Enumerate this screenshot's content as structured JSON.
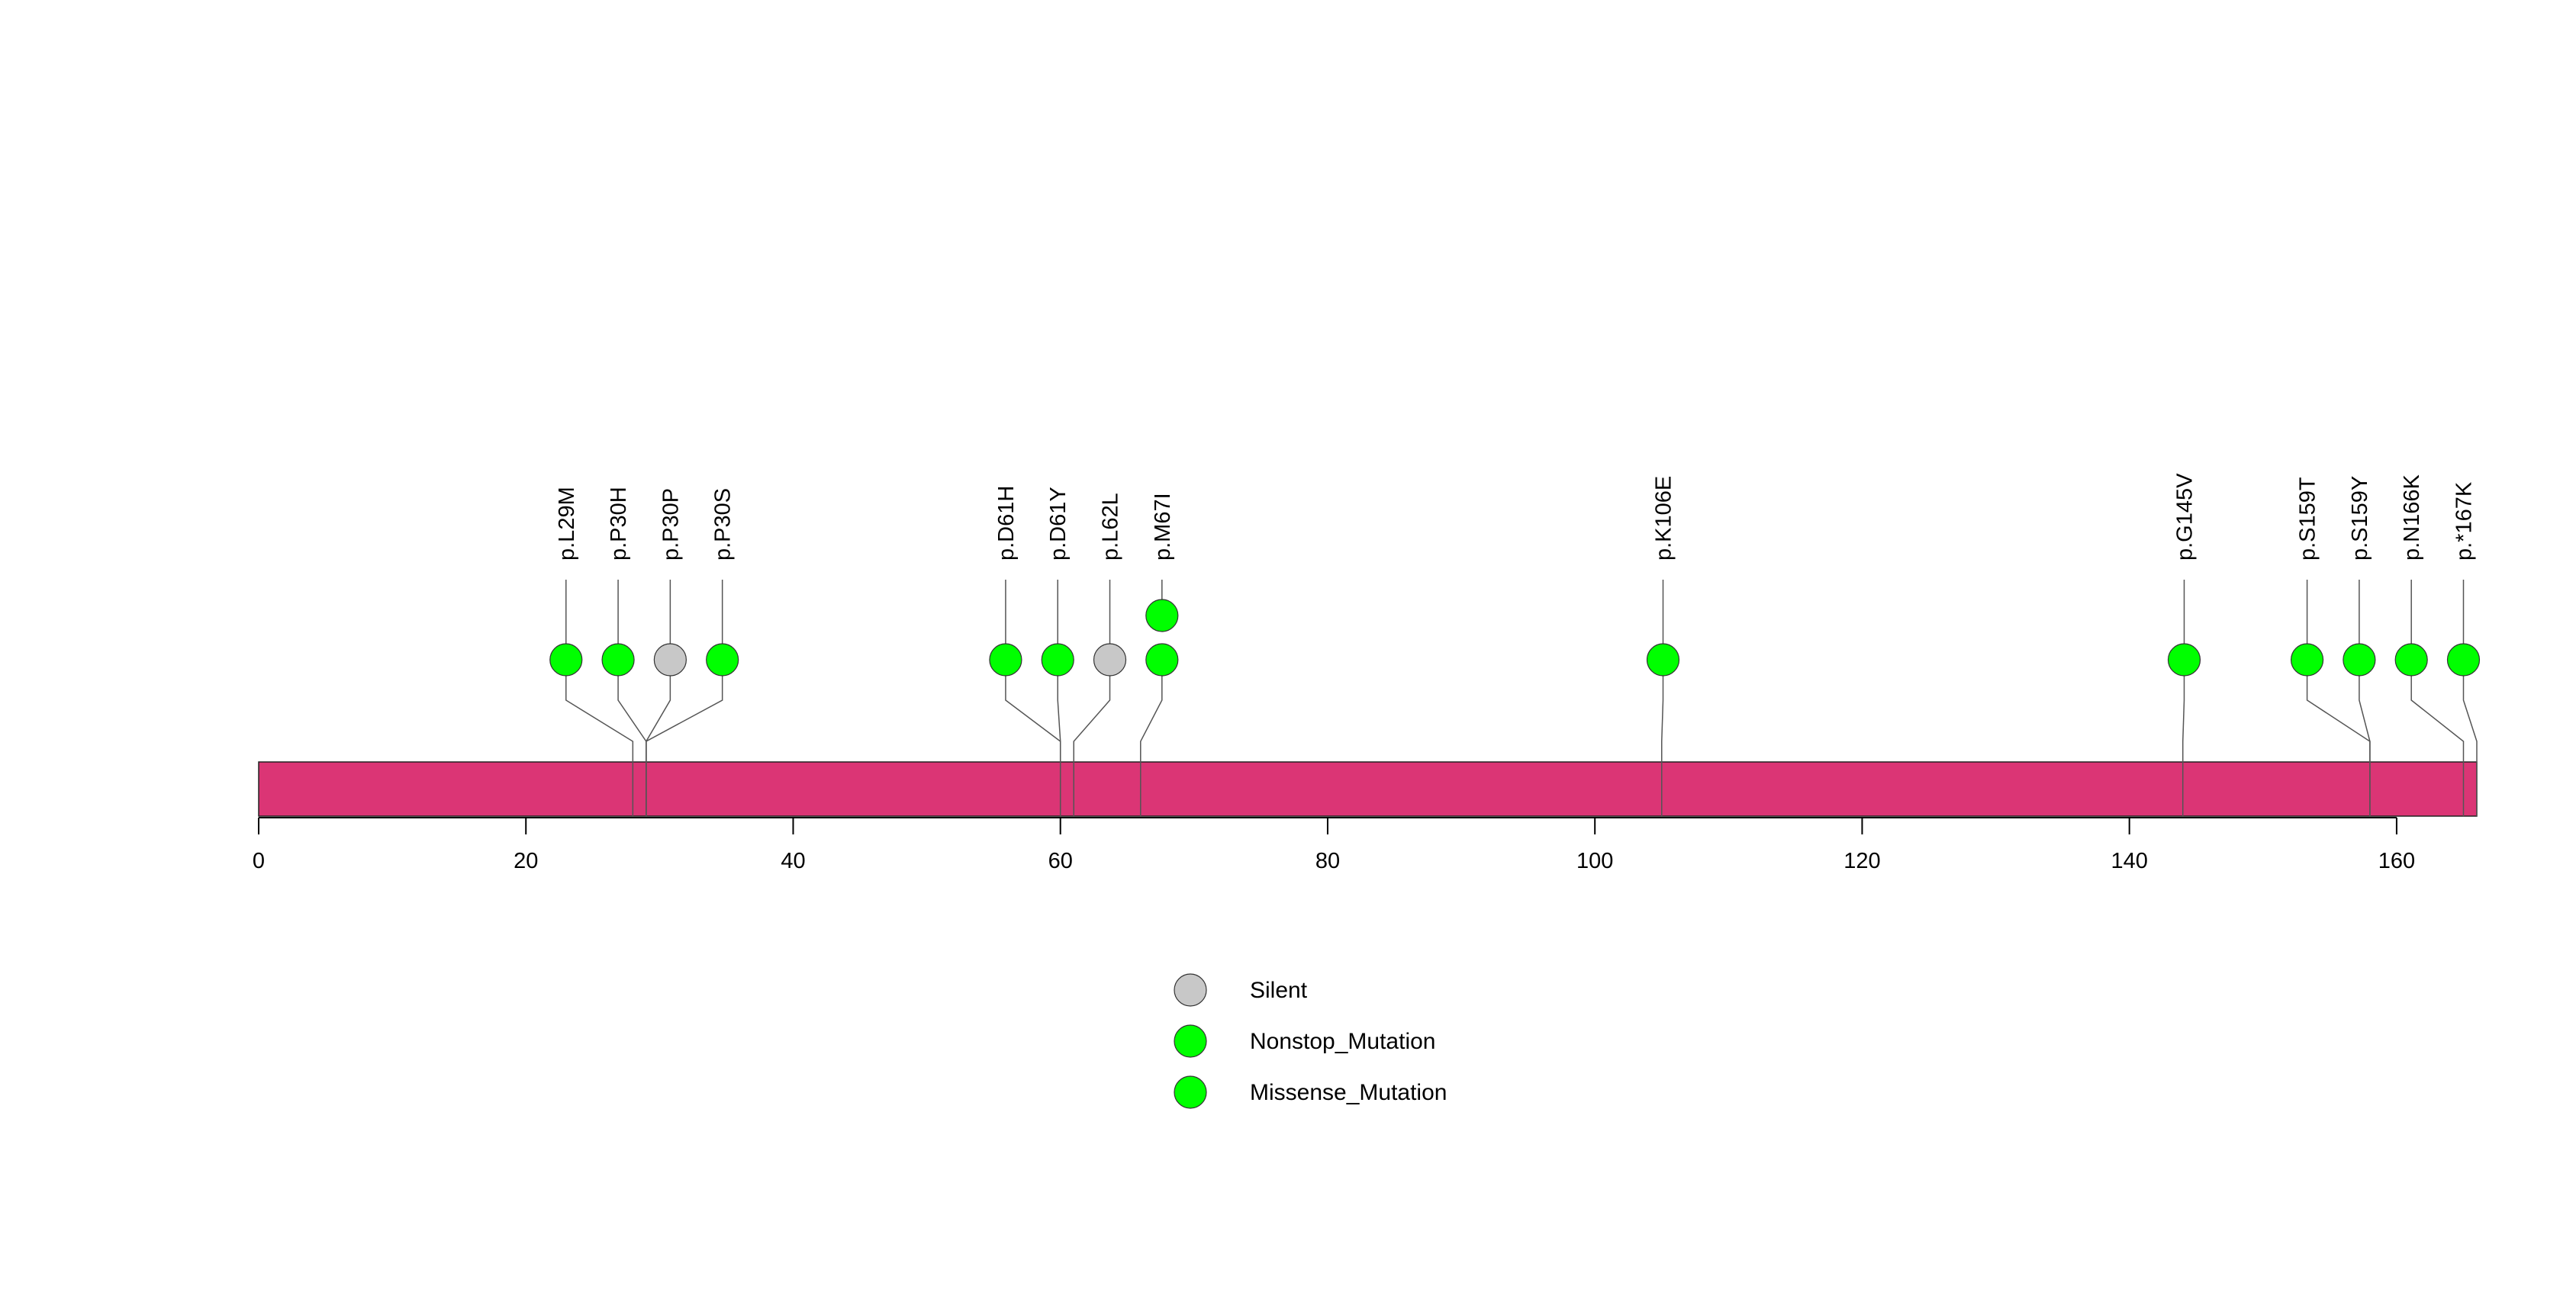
{
  "chart_data": {
    "type": "lollipop",
    "title": "",
    "xlabel": "",
    "ylabel": "",
    "xlim": [
      0,
      166
    ],
    "x_ticks": [
      0,
      20,
      40,
      60,
      80,
      100,
      120,
      140,
      160
    ],
    "protein_color": "#DB3575",
    "colors": {
      "Silent": "#C8C8C8",
      "Nonstop_Mutation": "#00FF00",
      "Missense_Mutation": "#00FF00"
    },
    "mutations": [
      {
        "label": "p.L29M",
        "position": 28,
        "marker_x": 23.0,
        "count": 1,
        "type": "Missense_Mutation"
      },
      {
        "label": "p.P30H",
        "position": 29,
        "marker_x": 26.9,
        "count": 1,
        "type": "Missense_Mutation"
      },
      {
        "label": "p.P30P",
        "position": 29,
        "marker_x": 30.8,
        "count": 1,
        "type": "Silent"
      },
      {
        "label": "p.P30S",
        "position": 29,
        "marker_x": 34.7,
        "count": 1,
        "type": "Missense_Mutation"
      },
      {
        "label": "p.D61H",
        "position": 60,
        "marker_x": 55.9,
        "count": 1,
        "type": "Missense_Mutation"
      },
      {
        "label": "p.D61Y",
        "position": 60,
        "marker_x": 59.8,
        "count": 1,
        "type": "Missense_Mutation"
      },
      {
        "label": "p.L62L",
        "position": 61,
        "marker_x": 63.7,
        "count": 1,
        "type": "Silent"
      },
      {
        "label": "p.M67I",
        "position": 66,
        "marker_x": 67.6,
        "count": 2,
        "type": "Missense_Mutation"
      },
      {
        "label": "p.K106E",
        "position": 105,
        "marker_x": 105.1,
        "count": 1,
        "type": "Missense_Mutation"
      },
      {
        "label": "p.G145V",
        "position": 144,
        "marker_x": 144.1,
        "count": 1,
        "type": "Missense_Mutation"
      },
      {
        "label": "p.S159T",
        "position": 158,
        "marker_x": 153.3,
        "count": 1,
        "type": "Missense_Mutation"
      },
      {
        "label": "p.S159Y",
        "position": 158,
        "marker_x": 157.2,
        "count": 1,
        "type": "Missense_Mutation"
      },
      {
        "label": "p.N166K",
        "position": 165,
        "marker_x": 161.1,
        "count": 1,
        "type": "Missense_Mutation"
      },
      {
        "label": "p.*167K",
        "position": 166,
        "marker_x": 165.0,
        "count": 1,
        "type": "Nonstop_Mutation"
      }
    ],
    "legend": {
      "placement": "bottom-center",
      "entries": [
        {
          "name": "Silent",
          "color": "#C8C8C8"
        },
        {
          "name": "Nonstop_Mutation",
          "color": "#00FF00"
        },
        {
          "name": "Missense_Mutation",
          "color": "#00FF00"
        }
      ]
    }
  }
}
